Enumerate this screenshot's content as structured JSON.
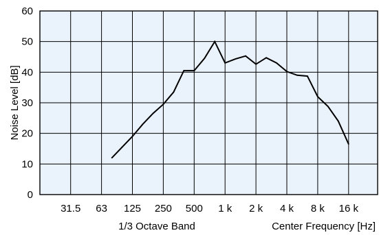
{
  "chart_data": {
    "type": "line",
    "ylabel": "Noise Level [dB]",
    "xlabel_left": "1/3 Octave Band",
    "xlabel_right": "Center Frequency [Hz]",
    "ylim": [
      0,
      60
    ],
    "yticks": [
      "0",
      "10",
      "20",
      "30",
      "40",
      "50",
      "60"
    ],
    "xtick_labels": [
      "31.5",
      "63",
      "125",
      "250",
      "500",
      "1 k",
      "2 k",
      "4 k",
      "8 k",
      "16 k"
    ],
    "x_scale": "log (1/3-octave bands)",
    "grid": true,
    "background_color": "#eaf2fb",
    "line_color": "#000000",
    "series": [
      {
        "x": [
          "80",
          "100",
          "125",
          "160",
          "200",
          "250",
          "315",
          "400",
          "500",
          "630",
          "800",
          "1 k",
          "1.25 k",
          "1.6 k",
          "2 k",
          "2.5 k",
          "3.15 k",
          "4 k",
          "5 k",
          "6.3 k",
          "8 k",
          "10 k",
          "12.5 k",
          "16 k"
        ],
        "values": [
          12,
          15.5,
          19,
          23,
          26.5,
          29.5,
          33.5,
          40.5,
          40.5,
          44.5,
          50,
          43,
          44.3,
          45.3,
          42.6,
          44.7,
          43,
          40.2,
          39,
          38.7,
          32,
          28.8,
          24,
          16.5
        ]
      }
    ]
  }
}
